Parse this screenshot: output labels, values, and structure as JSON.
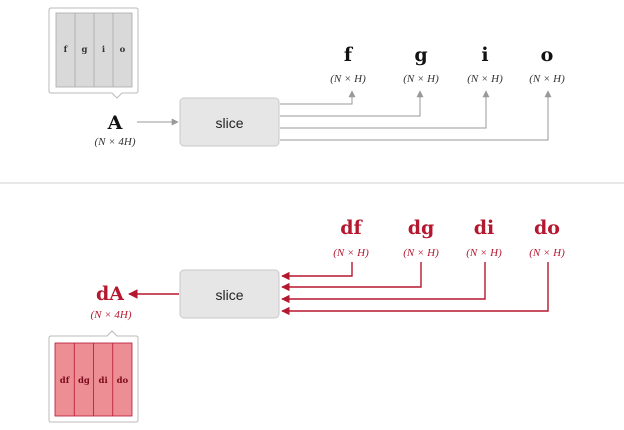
{
  "forward": {
    "block_label": "slice",
    "input": {
      "name": "A",
      "dim": "(N × 4H)",
      "cells": [
        "f",
        "g",
        "i",
        "o"
      ]
    },
    "outputs": [
      {
        "name": "f",
        "dim": "(N × H)"
      },
      {
        "name": "g",
        "dim": "(N × H)"
      },
      {
        "name": "i",
        "dim": "(N × H)"
      },
      {
        "name": "o",
        "dim": "(N × H)"
      }
    ]
  },
  "backward": {
    "block_label": "slice",
    "output": {
      "name": "dA",
      "dim": "(N × 4H)",
      "cells": [
        "df",
        "dg",
        "di",
        "do"
      ]
    },
    "inputs": [
      {
        "name": "df",
        "dim": "(N × H)"
      },
      {
        "name": "dg",
        "dim": "(N × H)"
      },
      {
        "name": "di",
        "dim": "(N × H)"
      },
      {
        "name": "do",
        "dim": "(N × H)"
      }
    ]
  },
  "colors": {
    "gray_line": "#999999",
    "box_fill": "#e6e6e6",
    "box_stroke": "#c8c8c8",
    "grad_red": "#b5172f",
    "grad_cell_fill": "#ec8e93",
    "fwd_cell_fill": "#d9d9d9"
  }
}
